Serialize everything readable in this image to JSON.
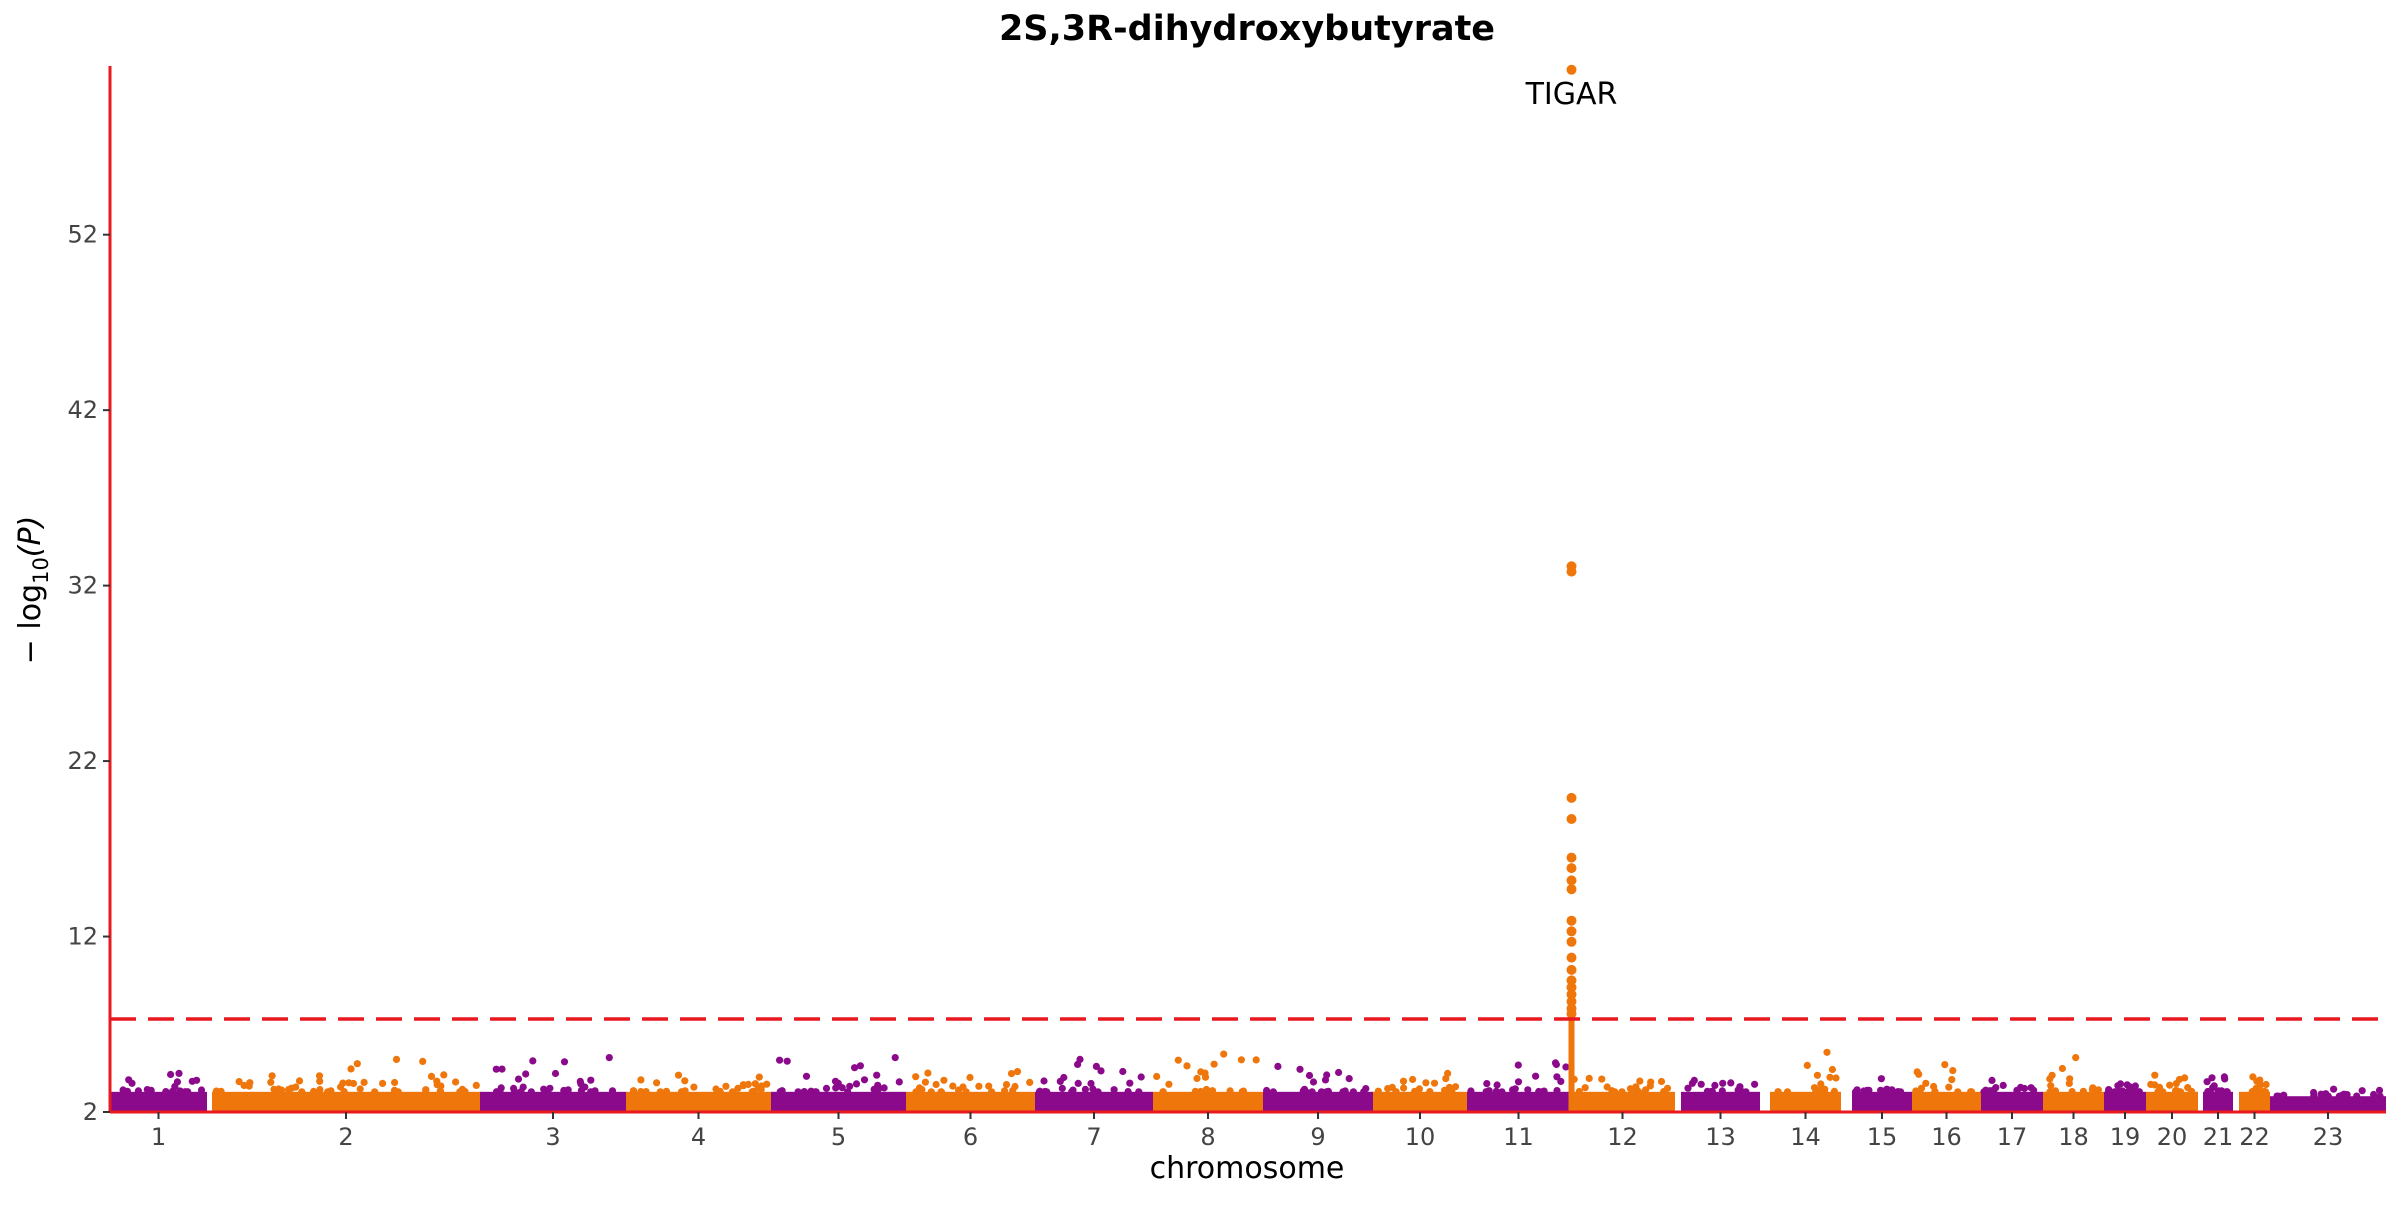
{
  "chart_data": {
    "type": "scatter",
    "subtype": "manhattan",
    "title": "2S,3R-dihydroxybutyrate",
    "xlabel": "chromosome",
    "ylabel": "− log10(P)",
    "ylabel_parts": {
      "prefix": "− log",
      "subscript": "10",
      "suffix": "(P)"
    },
    "ylim": [
      2,
      61.5
    ],
    "yticks": [
      2,
      12,
      22,
      32,
      42,
      52
    ],
    "grid": false,
    "significance_threshold": 7.3,
    "threshold_color": "#e8191f",
    "axis_color": "#e8191f",
    "colors": {
      "odd": "#8b0a8b",
      "even": "#ef760b"
    },
    "chromosomes": [
      {
        "label": "1",
        "peak": 4.2
      },
      {
        "label": "2",
        "peak": 5.0
      },
      {
        "label": "3",
        "peak": 5.1
      },
      {
        "label": "4",
        "peak": 4.1
      },
      {
        "label": "5",
        "peak": 5.1
      },
      {
        "label": "6",
        "peak": 4.3
      },
      {
        "label": "7",
        "peak": 5.0
      },
      {
        "label": "8",
        "peak": 5.3
      },
      {
        "label": "9",
        "peak": 4.6
      },
      {
        "label": "10",
        "peak": 4.2
      },
      {
        "label": "11",
        "peak": 4.8
      },
      {
        "label": "12",
        "peak": 61.4
      },
      {
        "label": "13",
        "peak": 3.8
      },
      {
        "label": "14",
        "peak": 5.4
      },
      {
        "label": "15",
        "peak": 3.9
      },
      {
        "label": "16",
        "peak": 4.7
      },
      {
        "label": "17",
        "peak": 3.8
      },
      {
        "label": "18",
        "peak": 5.1
      },
      {
        "label": "19",
        "peak": 3.6
      },
      {
        "label": "20",
        "peak": 4.1
      },
      {
        "label": "21",
        "peak": 4.0
      },
      {
        "label": "22",
        "peak": 4.0
      },
      {
        "label": "23",
        "peak": 3.3
      }
    ],
    "top_hits": [
      {
        "chromosome": "12",
        "values": [
          61.4,
          33.1,
          32.8,
          19.9,
          18.7,
          16.5,
          15.9,
          15.2,
          14.7,
          12.9,
          12.3,
          11.7,
          10.8,
          10.1,
          9.5,
          9.1,
          8.7,
          8.3,
          7.9,
          7.6
        ]
      }
    ],
    "annotations": [
      {
        "text": "TIGAR",
        "chromosome": "12",
        "value": 61.4
      }
    ]
  }
}
